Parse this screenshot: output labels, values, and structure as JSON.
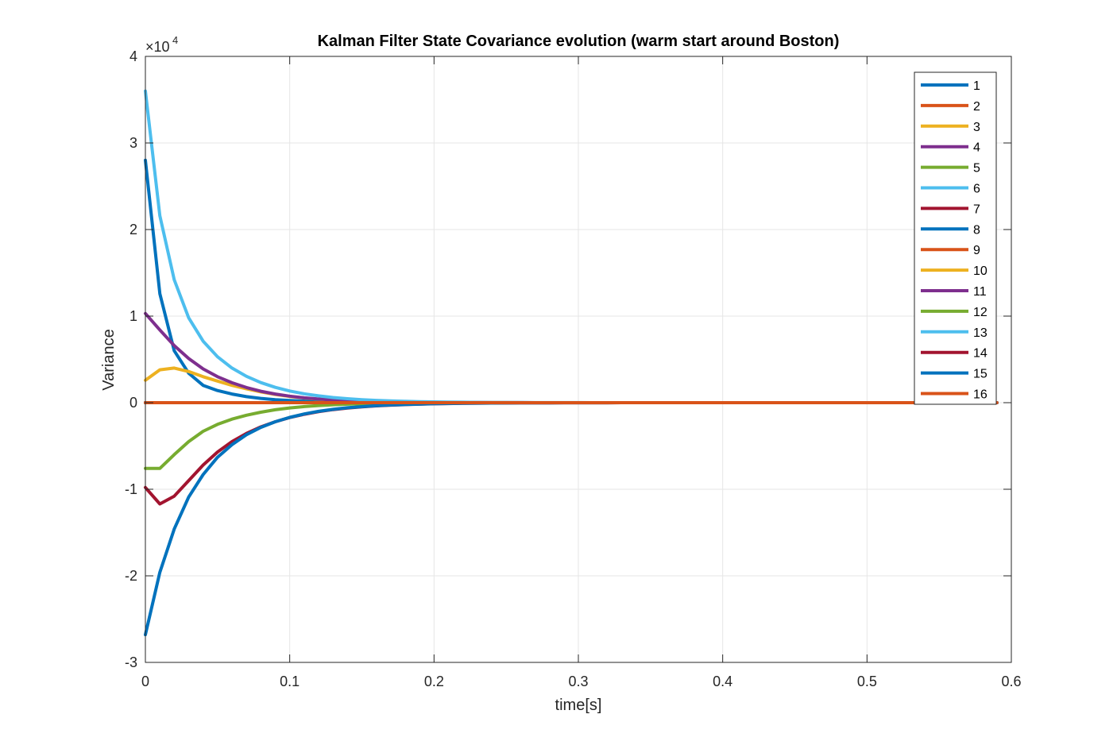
{
  "chart_data": {
    "type": "line",
    "title": "Kalman Filter State Covariance evolution (warm start around Boston)",
    "xlabel": "time[s]",
    "ylabel": "Variance",
    "y_multiplier_label": "×10",
    "y_multiplier_exponent": "4",
    "xlim": [
      0,
      0.6
    ],
    "ylim": [
      -30000,
      40000
    ],
    "x_ticks": [
      0,
      0.1,
      0.2,
      0.3,
      0.4,
      0.5,
      0.6
    ],
    "x_tick_labels": [
      "0",
      "0.1",
      "0.2",
      "0.3",
      "0.4",
      "0.5",
      "0.6"
    ],
    "y_ticks": [
      -30000,
      -20000,
      -10000,
      0,
      10000,
      20000,
      30000,
      40000
    ],
    "y_tick_labels": [
      "-3",
      "-2",
      "-1",
      "0",
      "1",
      "2",
      "3",
      "4"
    ],
    "grid": true,
    "legend_position": "top-right",
    "x": [
      0,
      0.01,
      0.02,
      0.03,
      0.04,
      0.05,
      0.06,
      0.07,
      0.08,
      0.09,
      0.1,
      0.11,
      0.12,
      0.13,
      0.14,
      0.15,
      0.16,
      0.17,
      0.18,
      0.19,
      0.2,
      0.21,
      0.22,
      0.23,
      0.24,
      0.25,
      0.26,
      0.27,
      0.28,
      0.29,
      0.3,
      0.31,
      0.32,
      0.33,
      0.34,
      0.35,
      0.36,
      0.37,
      0.38,
      0.39,
      0.4,
      0.41,
      0.42,
      0.43,
      0.44,
      0.45,
      0.46,
      0.47,
      0.48,
      0.49,
      0.5,
      0.51,
      0.52,
      0.53,
      0.54,
      0.55,
      0.56,
      0.57,
      0.58,
      0.59
    ],
    "series": [
      {
        "name": "1",
        "color": "#0072BD",
        "values": [
          28000,
          12600,
          6000,
          3400,
          2000,
          1400,
          1000,
          700,
          500,
          350,
          250,
          180,
          130,
          90,
          65,
          45,
          32,
          22,
          15,
          10,
          7,
          5,
          3,
          2,
          1,
          0,
          0,
          0,
          0,
          0,
          0,
          0,
          0,
          0,
          0,
          0,
          0,
          0,
          0,
          0,
          0,
          0,
          0,
          0,
          0,
          0,
          0,
          0,
          0,
          0,
          0,
          0,
          0,
          0,
          0,
          0,
          0,
          0,
          0,
          0
        ]
      },
      {
        "name": "2",
        "color": "#D95319",
        "values": [
          0,
          0,
          0,
          0,
          0,
          0,
          0,
          0,
          0,
          0,
          0,
          0,
          0,
          0,
          0,
          0,
          0,
          0,
          0,
          0,
          0,
          0,
          0,
          0,
          0,
          0,
          0,
          0,
          0,
          0,
          0,
          0,
          0,
          0,
          0,
          0,
          0,
          0,
          0,
          0,
          0,
          0,
          0,
          0,
          0,
          0,
          0,
          0,
          0,
          0,
          0,
          0,
          0,
          0,
          0,
          0,
          0,
          0,
          0,
          0
        ]
      },
      {
        "name": "3",
        "color": "#EDB120",
        "values": [
          2600,
          3800,
          4000,
          3600,
          3000,
          2500,
          2000,
          1600,
          1250,
          950,
          720,
          540,
          400,
          300,
          220,
          160,
          115,
          82,
          58,
          41,
          29,
          20,
          14,
          10,
          7,
          5,
          3,
          2,
          1,
          1,
          0,
          0,
          0,
          0,
          0,
          0,
          0,
          0,
          0,
          0,
          0,
          0,
          0,
          0,
          0,
          0,
          0,
          0,
          0,
          0,
          0,
          0,
          0,
          0,
          0,
          0,
          0,
          0,
          0,
          0
        ]
      },
      {
        "name": "4",
        "color": "#7E2F8E",
        "values": [
          10300,
          8400,
          6600,
          5100,
          3900,
          3000,
          2300,
          1750,
          1320,
          1000,
          750,
          560,
          420,
          310,
          230,
          170,
          125,
          92,
          67,
          49,
          36,
          26,
          19,
          14,
          10,
          7,
          5,
          3,
          2,
          1,
          0,
          0,
          0,
          0,
          0,
          0,
          0,
          0,
          0,
          0,
          0,
          0,
          0,
          0,
          0,
          0,
          0,
          0,
          0,
          0,
          0,
          0,
          0,
          0,
          0,
          0,
          0,
          0,
          0,
          0
        ]
      },
      {
        "name": "5",
        "color": "#77AC30",
        "values": [
          -7600,
          -7600,
          -6000,
          -4500,
          -3300,
          -2500,
          -1900,
          -1450,
          -1100,
          -820,
          -610,
          -450,
          -330,
          -240,
          -175,
          -128,
          -93,
          -68,
          -49,
          -36,
          -26,
          -19,
          -14,
          -10,
          -7,
          -5,
          -3,
          -2,
          -1,
          -1,
          0,
          0,
          0,
          0,
          0,
          0,
          0,
          0,
          0,
          0,
          0,
          0,
          0,
          0,
          0,
          0,
          0,
          0,
          0,
          0,
          0,
          0,
          0,
          0,
          0,
          0,
          0,
          0,
          0,
          0
        ]
      },
      {
        "name": "6",
        "color": "#4DBEEE",
        "values": [
          36000,
          21600,
          14200,
          9800,
          7100,
          5300,
          4000,
          3050,
          2320,
          1770,
          1350,
          1030,
          790,
          600,
          460,
          350,
          268,
          205,
          156,
          119,
          91,
          69,
          53,
          40,
          31,
          23,
          18,
          13,
          10,
          8,
          6,
          4,
          3,
          2,
          1,
          1,
          0,
          0,
          0,
          0,
          0,
          0,
          0,
          0,
          0,
          0,
          0,
          0,
          0,
          0,
          0,
          0,
          0,
          0,
          0,
          0,
          0,
          0,
          0,
          0
        ]
      },
      {
        "name": "7",
        "color": "#A2142F",
        "values": [
          -9800,
          -11700,
          -10800,
          -9000,
          -7200,
          -5700,
          -4500,
          -3550,
          -2800,
          -2200,
          -1720,
          -1340,
          -1040,
          -800,
          -620,
          -480,
          -370,
          -285,
          -220,
          -170,
          -130,
          -100,
          -77,
          -59,
          -45,
          -35,
          -27,
          -20,
          -15,
          -12,
          -9,
          -7,
          -5,
          -4,
          -3,
          -2,
          -1,
          -1,
          0,
          0,
          0,
          0,
          0,
          0,
          0,
          0,
          0,
          0,
          0,
          0,
          0,
          0,
          0,
          0,
          0,
          0,
          0,
          0,
          0,
          0
        ]
      },
      {
        "name": "8",
        "color": "#0072BD",
        "values": [
          -26800,
          -19600,
          -14600,
          -10900,
          -8300,
          -6300,
          -4850,
          -3700,
          -2850,
          -2200,
          -1700,
          -1300,
          -1000,
          -770,
          -590,
          -455,
          -350,
          -270,
          -207,
          -160,
          -123,
          -95,
          -73,
          -56,
          -43,
          -33,
          -25,
          -19,
          -15,
          -11,
          -9,
          -7,
          -5,
          -4,
          -3,
          -2,
          -1,
          -1,
          0,
          0,
          0,
          0,
          0,
          0,
          0,
          0,
          0,
          0,
          0,
          0,
          0,
          0,
          0,
          0,
          0,
          0,
          0,
          0,
          0,
          0
        ]
      },
      {
        "name": "9",
        "color": "#D95319",
        "values": [
          0,
          0,
          0,
          0,
          0,
          0,
          0,
          0,
          0,
          0,
          0,
          0,
          0,
          0,
          0,
          0,
          0,
          0,
          0,
          0,
          0,
          0,
          0,
          0,
          0,
          0,
          0,
          0,
          0,
          0,
          0,
          0,
          0,
          0,
          0,
          0,
          0,
          0,
          0,
          0,
          0,
          0,
          0,
          0,
          0,
          0,
          0,
          0,
          0,
          0,
          0,
          0,
          0,
          0,
          0,
          0,
          0,
          0,
          0,
          0
        ]
      },
      {
        "name": "10",
        "color": "#EDB120",
        "values": [
          0,
          0,
          0,
          0,
          0,
          0,
          0,
          0,
          0,
          0,
          0,
          0,
          0,
          0,
          0,
          0,
          0,
          0,
          0,
          0,
          0,
          0,
          0,
          0,
          0,
          0,
          0,
          0,
          0,
          0,
          0,
          0,
          0,
          0,
          0,
          0,
          0,
          0,
          0,
          0,
          0,
          0,
          0,
          0,
          0,
          0,
          0,
          0,
          0,
          0,
          0,
          0,
          0,
          0,
          0,
          0,
          0,
          0,
          0,
          0
        ]
      },
      {
        "name": "11",
        "color": "#7E2F8E",
        "values": [
          0,
          0,
          0,
          0,
          0,
          0,
          0,
          0,
          0,
          0,
          0,
          0,
          0,
          0,
          0,
          0,
          0,
          0,
          0,
          0,
          0,
          0,
          0,
          0,
          0,
          0,
          0,
          0,
          0,
          0,
          0,
          0,
          0,
          0,
          0,
          0,
          0,
          0,
          0,
          0,
          0,
          0,
          0,
          0,
          0,
          0,
          0,
          0,
          0,
          0,
          0,
          0,
          0,
          0,
          0,
          0,
          0,
          0,
          0,
          0
        ]
      },
      {
        "name": "12",
        "color": "#77AC30",
        "values": [
          0,
          0,
          0,
          0,
          0,
          0,
          0,
          0,
          0,
          0,
          0,
          0,
          0,
          0,
          0,
          0,
          0,
          0,
          0,
          0,
          0,
          0,
          0,
          0,
          0,
          0,
          0,
          0,
          0,
          0,
          0,
          0,
          0,
          0,
          0,
          0,
          0,
          0,
          0,
          0,
          0,
          0,
          0,
          0,
          0,
          0,
          0,
          0,
          0,
          0,
          0,
          0,
          0,
          0,
          0,
          0,
          0,
          0,
          0,
          0
        ]
      },
      {
        "name": "13",
        "color": "#4DBEEE",
        "values": [
          0,
          0,
          0,
          0,
          0,
          0,
          0,
          0,
          0,
          0,
          0,
          0,
          0,
          0,
          0,
          0,
          0,
          0,
          0,
          0,
          0,
          0,
          0,
          0,
          0,
          0,
          0,
          0,
          0,
          0,
          0,
          0,
          0,
          0,
          0,
          0,
          0,
          0,
          0,
          0,
          0,
          0,
          0,
          0,
          0,
          0,
          0,
          0,
          0,
          0,
          0,
          0,
          0,
          0,
          0,
          0,
          0,
          0,
          0,
          0
        ]
      },
      {
        "name": "14",
        "color": "#A2142F",
        "values": [
          0,
          0,
          0,
          0,
          0,
          0,
          0,
          0,
          0,
          0,
          0,
          0,
          0,
          0,
          0,
          0,
          0,
          0,
          0,
          0,
          0,
          0,
          0,
          0,
          0,
          0,
          0,
          0,
          0,
          0,
          0,
          0,
          0,
          0,
          0,
          0,
          0,
          0,
          0,
          0,
          0,
          0,
          0,
          0,
          0,
          0,
          0,
          0,
          0,
          0,
          0,
          0,
          0,
          0,
          0,
          0,
          0,
          0,
          0,
          0
        ]
      },
      {
        "name": "15",
        "color": "#0072BD",
        "values": [
          0,
          0,
          0,
          0,
          0,
          0,
          0,
          0,
          0,
          0,
          0,
          0,
          0,
          0,
          0,
          0,
          0,
          0,
          0,
          0,
          0,
          0,
          0,
          0,
          0,
          0,
          0,
          0,
          0,
          0,
          0,
          0,
          0,
          0,
          0,
          0,
          0,
          0,
          0,
          0,
          0,
          0,
          0,
          0,
          0,
          0,
          0,
          0,
          0,
          0,
          0,
          0,
          0,
          0,
          0,
          0,
          0,
          0,
          0,
          0
        ]
      },
      {
        "name": "16",
        "color": "#D95319",
        "values": [
          0,
          0,
          0,
          0,
          0,
          0,
          0,
          0,
          0,
          0,
          0,
          0,
          0,
          0,
          0,
          0,
          0,
          0,
          0,
          0,
          0,
          0,
          0,
          0,
          0,
          0,
          0,
          0,
          0,
          0,
          0,
          0,
          0,
          0,
          0,
          0,
          0,
          0,
          0,
          0,
          0,
          0,
          0,
          0,
          0,
          0,
          0,
          0,
          0,
          0,
          0,
          0,
          0,
          0,
          0,
          0,
          0,
          0,
          0,
          0
        ]
      }
    ]
  }
}
